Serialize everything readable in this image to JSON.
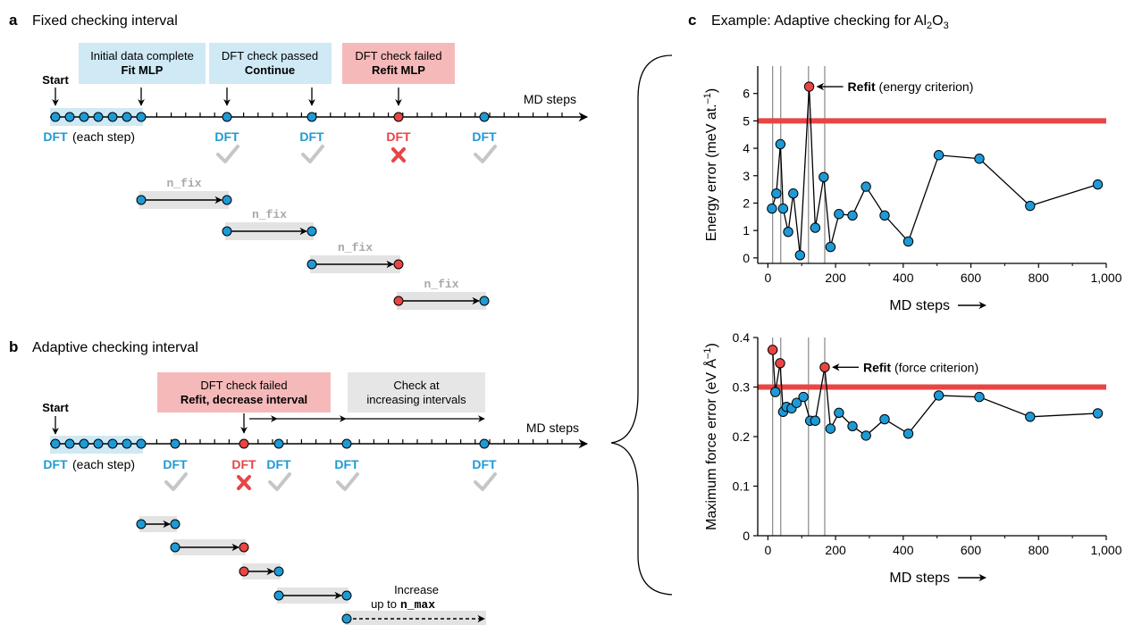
{
  "panel_a": {
    "letter": "a",
    "title": "Fixed checking interval",
    "start_label": "Start",
    "axis_label": "MD steps",
    "boxes": [
      {
        "line1": "Initial data complete",
        "line2": "Fit MLP",
        "color": "#cfe9f5"
      },
      {
        "line1": "DFT check passed",
        "line2": "Continue",
        "color": "#cfe9f5"
      },
      {
        "line1": "DFT check failed",
        "line2": "Refit MLP",
        "color": "#f6b9b9"
      }
    ],
    "dft_label": "DFT",
    "each_step": "(each step)",
    "n_fix": "n_fix"
  },
  "panel_b": {
    "letter": "b",
    "title": "Adaptive checking interval",
    "start_label": "Start",
    "axis_label": "MD steps",
    "boxes": [
      {
        "line1": "DFT check failed",
        "line2": "Refit, decrease interval",
        "color": "#f6b9b9"
      },
      {
        "line1": "Check at",
        "line2": "increasing intervals",
        "color": "#e6e6e6"
      }
    ],
    "dft_label": "DFT",
    "each_step": "(each step)",
    "increase_line1": "Increase",
    "increase_line2": "up to",
    "increase_code": "n_max"
  },
  "panel_c": {
    "letter": "c",
    "title_prefix": "Example: Adaptive checking for Al",
    "title_sub1": "2",
    "title_mid": "O",
    "title_sub2": "3"
  },
  "colors": {
    "blue": "#1e9ad6",
    "red": "#e84545",
    "light_blue": "#cfe9f5",
    "pink": "#f6b9b9",
    "gray": "#e3e3e3",
    "check": "#c6c6c6",
    "threshold": "#e84545"
  },
  "chart_data": [
    {
      "type": "line",
      "ylabel": "Energy error (meV at.",
      "ylabel_sup": "–1",
      "ylabel_end": ")",
      "xlabel": "MD steps",
      "xlim": [
        -30,
        1000
      ],
      "ylim": [
        -0.2,
        7
      ],
      "xticks": [
        0,
        200,
        400,
        600,
        800,
        1000
      ],
      "xtick_labels": [
        "0",
        "200",
        "400",
        "600",
        "800",
        "1,000"
      ],
      "yticks": [
        0,
        1,
        2,
        3,
        4,
        5,
        6
      ],
      "ytick_labels": [
        "0",
        "1",
        "2",
        "3",
        "4",
        "5",
        "6"
      ],
      "threshold": 5,
      "refit_lines": [
        14,
        38,
        120,
        168
      ],
      "x": [
        12,
        25,
        37,
        45,
        60,
        75,
        95,
        122,
        140,
        165,
        185,
        210,
        250,
        290,
        345,
        415,
        505,
        625,
        775,
        975
      ],
      "y": [
        1.8,
        2.35,
        4.15,
        1.8,
        0.95,
        2.35,
        0.1,
        6.25,
        1.1,
        2.95,
        0.4,
        1.6,
        1.55,
        2.6,
        1.55,
        0.6,
        3.75,
        3.62,
        1.9,
        2.68
      ],
      "refit_index": [
        7
      ],
      "annotation_bold": "Refit",
      "annotation_rest": "(energy criterion)"
    },
    {
      "type": "line",
      "ylabel": "Maximum force error (eV Å",
      "ylabel_sup": "–1",
      "ylabel_end": ")",
      "xlabel": "MD steps",
      "xlim": [
        -30,
        1000
      ],
      "ylim": [
        0,
        0.4
      ],
      "xticks": [
        0,
        200,
        400,
        600,
        800,
        1000
      ],
      "xtick_labels": [
        "0",
        "200",
        "400",
        "600",
        "800",
        "1,000"
      ],
      "yticks": [
        0,
        0.1,
        0.2,
        0.3,
        0.4
      ],
      "ytick_labels": [
        "0",
        "0.1",
        "0.2",
        "0.3",
        "0.4"
      ],
      "threshold": 0.3,
      "refit_lines": [
        14,
        38,
        120,
        168
      ],
      "x": [
        14,
        22,
        36,
        45,
        55,
        70,
        85,
        105,
        125,
        140,
        168,
        185,
        210,
        250,
        290,
        345,
        415,
        505,
        625,
        775,
        975
      ],
      "y": [
        0.375,
        0.29,
        0.348,
        0.25,
        0.26,
        0.257,
        0.268,
        0.28,
        0.232,
        0.232,
        0.34,
        0.216,
        0.248,
        0.221,
        0.202,
        0.235,
        0.206,
        0.283,
        0.28,
        0.24,
        0.247
      ],
      "refit_index": [
        0,
        2,
        10
      ],
      "annotation_bold": "Refit",
      "annotation_rest": "(force criterion)"
    }
  ]
}
